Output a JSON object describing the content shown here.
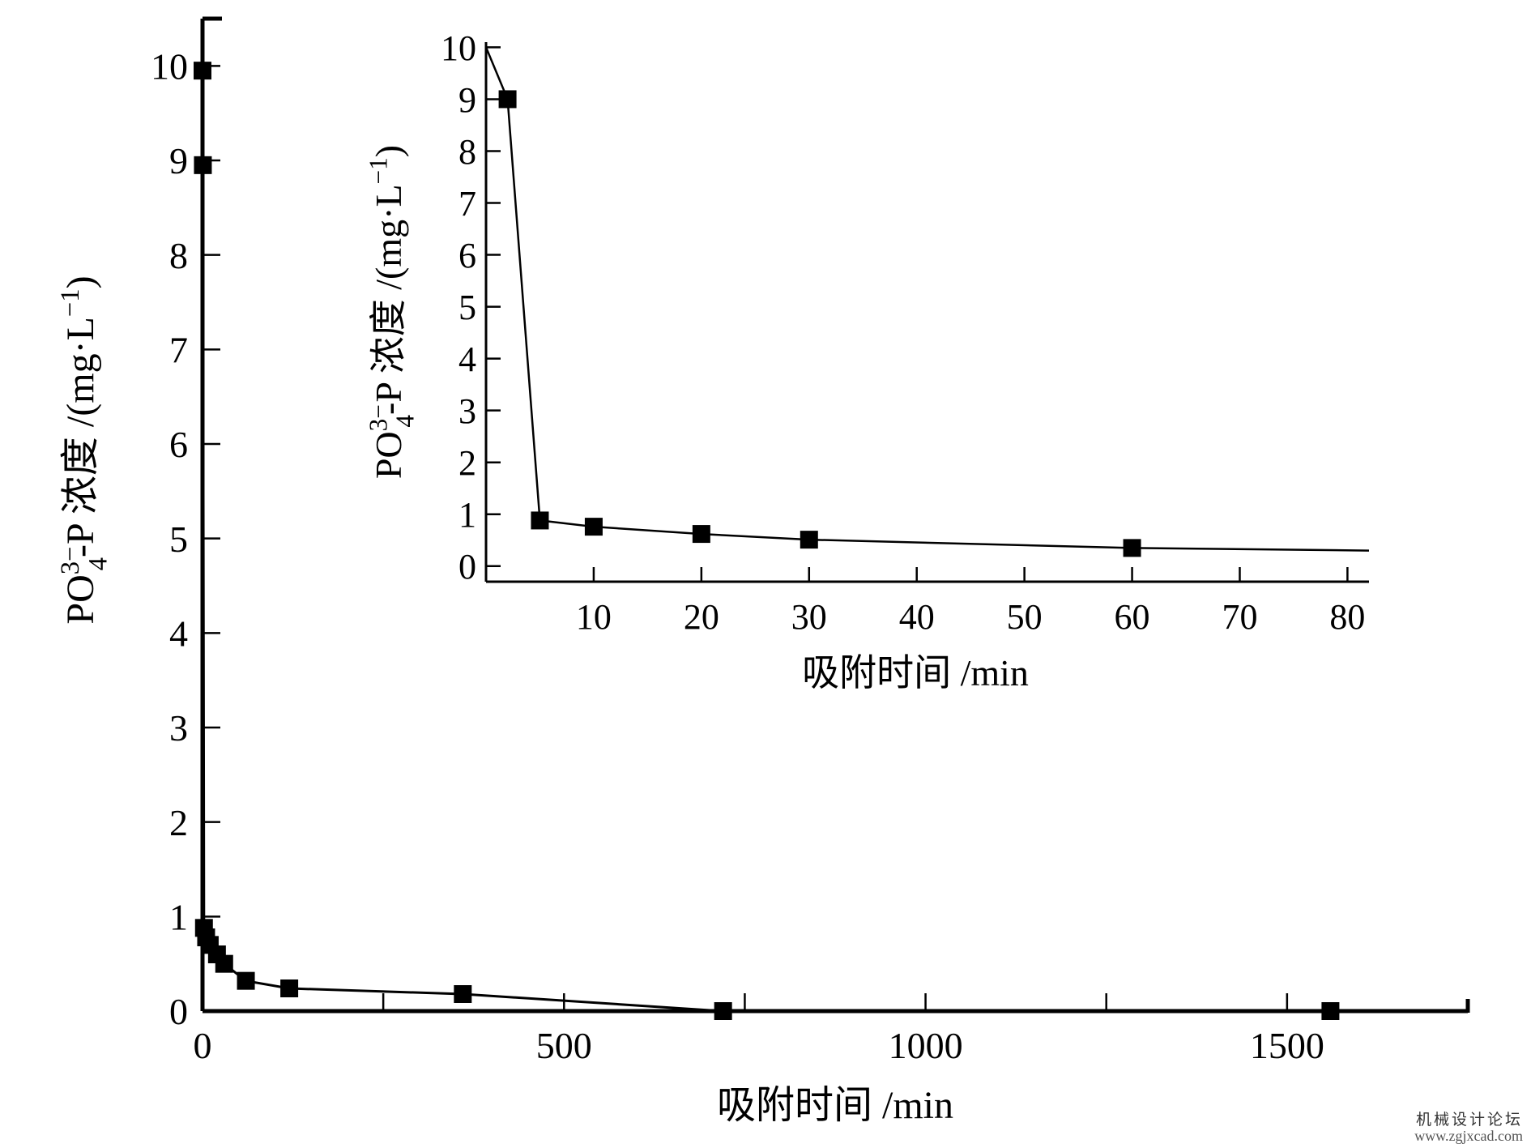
{
  "chart_data": [
    {
      "type": "line",
      "role": "main",
      "xlabel": "吸附时间 /min",
      "ylabel_main": "PO",
      "ylabel_sup": "3−",
      "ylabel_sub": "4",
      "ylabel_rest": "-P 浓度 /(mg·L",
      "ylabel_unit_sup": "−1",
      "ylabel_close": ")",
      "xlim": [
        0,
        1750
      ],
      "ylim": [
        0,
        10.5
      ],
      "xticks": [
        0,
        500,
        1000,
        1500
      ],
      "xtick_labels": [
        "0",
        "500",
        "1000",
        "1500"
      ],
      "yticks": [
        0,
        1,
        2,
        3,
        4,
        5,
        6,
        7,
        8,
        9,
        10
      ],
      "ytick_labels": [
        "0",
        "1",
        "2",
        "3",
        "4",
        "5",
        "6",
        "7",
        "8",
        "9",
        "10"
      ],
      "marker": "square",
      "series": [
        {
          "x": [
            0,
            0.5,
            2,
            5,
            10,
            20,
            30,
            60,
            120,
            360,
            720,
            1560
          ],
          "y": [
            9.95,
            8.95,
            0.88,
            0.78,
            0.7,
            0.6,
            0.5,
            0.32,
            0.24,
            0.18,
            0.0,
            0.0
          ]
        }
      ]
    },
    {
      "type": "line",
      "role": "inset",
      "xlabel": "吸附时间 /min",
      "ylabel_main": "PO",
      "ylabel_sup": "3−",
      "ylabel_sub": "4",
      "ylabel_rest": "-P 浓度 /(mg·L",
      "ylabel_unit_sup": "−1",
      "ylabel_close": ")",
      "xlim": [
        0,
        82
      ],
      "ylim": [
        -0.3,
        10.1
      ],
      "xticks": [
        10,
        20,
        30,
        40,
        50,
        60,
        70,
        80
      ],
      "xtick_labels": [
        "10",
        "20",
        "30",
        "40",
        "50",
        "60",
        "70",
        "80"
      ],
      "yticks": [
        0,
        1,
        2,
        3,
        4,
        5,
        6,
        7,
        8,
        9,
        10
      ],
      "ytick_labels": [
        "0",
        "1",
        "2",
        "3",
        "4",
        "5",
        "6",
        "7",
        "8",
        "9",
        "10"
      ],
      "marker": "square",
      "series": [
        {
          "x": [
            0,
            2,
            5,
            10,
            20,
            30,
            60,
            82
          ],
          "y": [
            10.0,
            9.0,
            0.88,
            0.76,
            0.62,
            0.51,
            0.35,
            0.3
          ],
          "marker_x": [
            2,
            5,
            10,
            20,
            30,
            60
          ],
          "marker_y": [
            9.0,
            0.88,
            0.76,
            0.62,
            0.51,
            0.35
          ]
        }
      ]
    }
  ],
  "watermark": {
    "title": "机械设计论坛",
    "url": "www.zgjxcad.com"
  }
}
